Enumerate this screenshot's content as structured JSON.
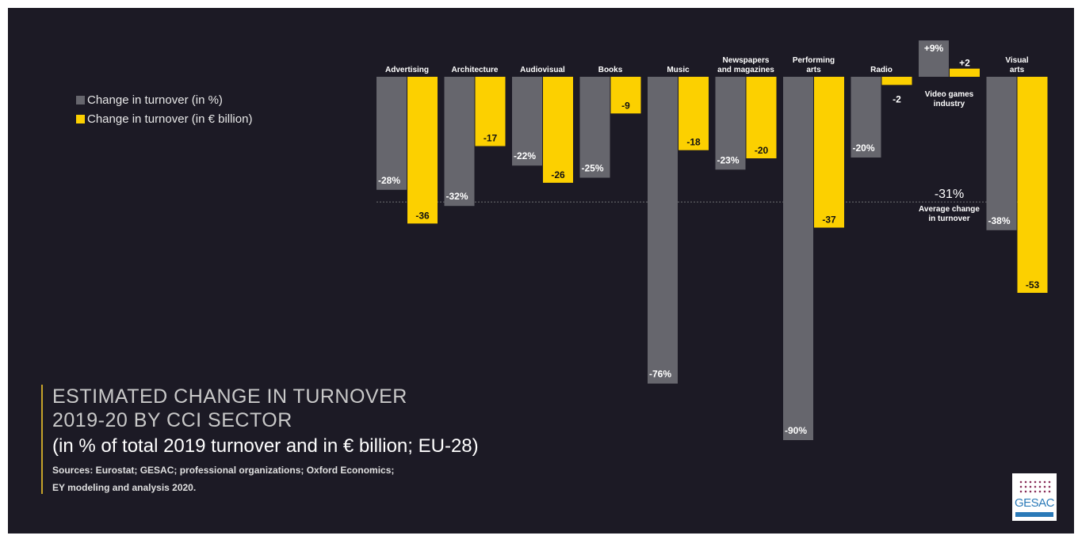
{
  "chart_data": {
    "type": "bar",
    "legend": [
      {
        "label": "Change in turnover (in %)",
        "color": "#66666d"
      },
      {
        "label": "Change in turnover (in € billion)",
        "color": "#fcd000"
      }
    ],
    "categories": [
      {
        "name": "Advertising",
        "pct": -28,
        "pct_label": "-28%",
        "eur": -36,
        "eur_label": "-36"
      },
      {
        "name": "Architecture",
        "pct": -32,
        "pct_label": "-32%",
        "eur": -17,
        "eur_label": "-17"
      },
      {
        "name": "Audiovisual",
        "pct": -22,
        "pct_label": "-22%",
        "eur": -26,
        "eur_label": "-26"
      },
      {
        "name": "Books",
        "pct": -25,
        "pct_label": "-25%",
        "eur": -9,
        "eur_label": "-9"
      },
      {
        "name": "Music",
        "pct": -76,
        "pct_label": "-76%",
        "eur": -18,
        "eur_label": "-18"
      },
      {
        "name": "Newspapers and magazines",
        "name_lines": [
          "Newspapers",
          "and magazines"
        ],
        "pct": -23,
        "pct_label": "-23%",
        "eur": -20,
        "eur_label": "-20"
      },
      {
        "name": "Performing arts",
        "name_lines": [
          "Performing",
          "arts"
        ],
        "pct": -90,
        "pct_label": "-90%",
        "eur": -37,
        "eur_label": "-37"
      },
      {
        "name": "Radio",
        "pct": -20,
        "pct_label": "-20%",
        "eur": -2,
        "eur_label": "-2"
      },
      {
        "name": "Video games industry",
        "name_lines": [
          "Video games",
          "industry"
        ],
        "pct": 9,
        "pct_label": "+9%",
        "eur": 2,
        "eur_label": "+2"
      },
      {
        "name": "Visual arts",
        "name_lines": [
          "Visual",
          "arts"
        ],
        "pct": -38,
        "pct_label": "-38%",
        "eur": -53,
        "eur_label": "-53"
      }
    ],
    "average": {
      "value": -31,
      "value_label": "-31%",
      "label_lines": [
        "Average change",
        "in turnover"
      ]
    },
    "colors": {
      "pct": "#66666d",
      "eur": "#fcd000",
      "background": "#1c1a25"
    }
  },
  "title": {
    "line1": "ESTIMATED CHANGE IN TURNOVER",
    "line2": "2019-20 BY CCI SECTOR",
    "line3": "(in % of total 2019 turnover and in € billion; EU-28)"
  },
  "sources": {
    "line1": "Sources: Eurostat; GESAC; professional organizations; Oxford Economics;",
    "line2": "EY modeling and analysis 2020."
  },
  "logo": {
    "text": "GESAC"
  }
}
